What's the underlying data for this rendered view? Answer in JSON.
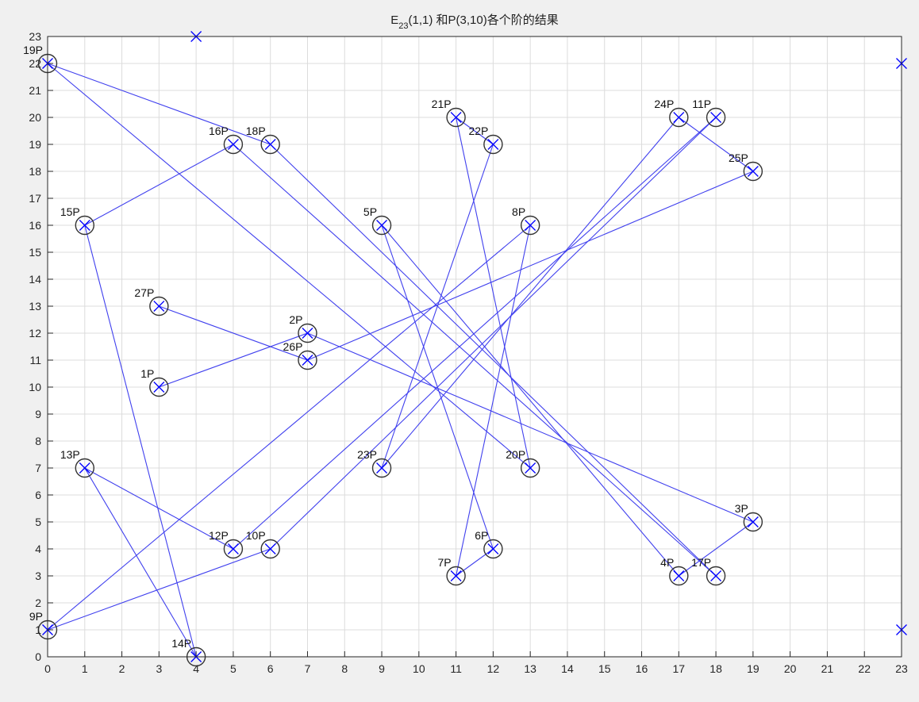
{
  "chart_data": {
    "type": "scatter",
    "title_main": "E",
    "title_sub": "23",
    "title_rest": "(1,1) 和P(3,10)各个阶的结果",
    "xlim": [
      0,
      23
    ],
    "ylim": [
      0,
      23
    ],
    "x_ticks": [
      0,
      1,
      2,
      3,
      4,
      5,
      6,
      7,
      8,
      9,
      10,
      11,
      12,
      13,
      14,
      15,
      16,
      17,
      18,
      19,
      20,
      21,
      22,
      23
    ],
    "y_ticks": [
      0,
      1,
      2,
      3,
      4,
      5,
      6,
      7,
      8,
      9,
      10,
      11,
      12,
      13,
      14,
      15,
      16,
      17,
      18,
      19,
      20,
      21,
      22,
      23
    ],
    "grid": true,
    "colors": {
      "marker": "#0000ff",
      "line": "#4040ee",
      "circle": "#333333",
      "grid": "#dcdcdc",
      "axes_bg": "#ffffff"
    },
    "curve_points": [
      {
        "x": 0,
        "y": 1
      },
      {
        "x": 0,
        "y": 22
      },
      {
        "x": 1,
        "y": 7
      },
      {
        "x": 1,
        "y": 16
      },
      {
        "x": 3,
        "y": 10
      },
      {
        "x": 3,
        "y": 13
      },
      {
        "x": 4,
        "y": 0
      },
      {
        "x": 4,
        "y": 23
      },
      {
        "x": 5,
        "y": 4
      },
      {
        "x": 5,
        "y": 19
      },
      {
        "x": 6,
        "y": 4
      },
      {
        "x": 6,
        "y": 19
      },
      {
        "x": 7,
        "y": 11
      },
      {
        "x": 7,
        "y": 12
      },
      {
        "x": 9,
        "y": 7
      },
      {
        "x": 9,
        "y": 16
      },
      {
        "x": 11,
        "y": 3
      },
      {
        "x": 11,
        "y": 20
      },
      {
        "x": 12,
        "y": 4
      },
      {
        "x": 12,
        "y": 19
      },
      {
        "x": 13,
        "y": 7
      },
      {
        "x": 13,
        "y": 16
      },
      {
        "x": 17,
        "y": 3
      },
      {
        "x": 17,
        "y": 20
      },
      {
        "x": 18,
        "y": 3
      },
      {
        "x": 18,
        "y": 20
      },
      {
        "x": 19,
        "y": 5
      },
      {
        "x": 19,
        "y": 18
      },
      {
        "x": 23,
        "y": 1
      },
      {
        "x": 23,
        "y": 22
      }
    ],
    "multiples": [
      {
        "label": "1P",
        "x": 3,
        "y": 10
      },
      {
        "label": "2P",
        "x": 7,
        "y": 12
      },
      {
        "label": "3P",
        "x": 19,
        "y": 5
      },
      {
        "label": "4P",
        "x": 17,
        "y": 3
      },
      {
        "label": "5P",
        "x": 9,
        "y": 16
      },
      {
        "label": "6P",
        "x": 12,
        "y": 4
      },
      {
        "label": "7P",
        "x": 11,
        "y": 3
      },
      {
        "label": "8P",
        "x": 13,
        "y": 16
      },
      {
        "label": "9P",
        "x": 0,
        "y": 1
      },
      {
        "label": "10P",
        "x": 6,
        "y": 4
      },
      {
        "label": "11P",
        "x": 18,
        "y": 20
      },
      {
        "label": "12P",
        "x": 5,
        "y": 4
      },
      {
        "label": "13P",
        "x": 1,
        "y": 7
      },
      {
        "label": "14P",
        "x": 4,
        "y": 0
      },
      {
        "label": "15P",
        "x": 1,
        "y": 16
      },
      {
        "label": "16P",
        "x": 5,
        "y": 19
      },
      {
        "label": "17P",
        "x": 18,
        "y": 3
      },
      {
        "label": "18P",
        "x": 6,
        "y": 19
      },
      {
        "label": "19P",
        "x": 0,
        "y": 22
      },
      {
        "label": "20P",
        "x": 13,
        "y": 7
      },
      {
        "label": "21P",
        "x": 11,
        "y": 20
      },
      {
        "label": "22P",
        "x": 12,
        "y": 19
      },
      {
        "label": "23P",
        "x": 9,
        "y": 7
      },
      {
        "label": "24P",
        "x": 17,
        "y": 20
      },
      {
        "label": "25P",
        "x": 19,
        "y": 18
      },
      {
        "label": "26P",
        "x": 7,
        "y": 11
      },
      {
        "label": "27P",
        "x": 3,
        "y": 13
      }
    ]
  }
}
